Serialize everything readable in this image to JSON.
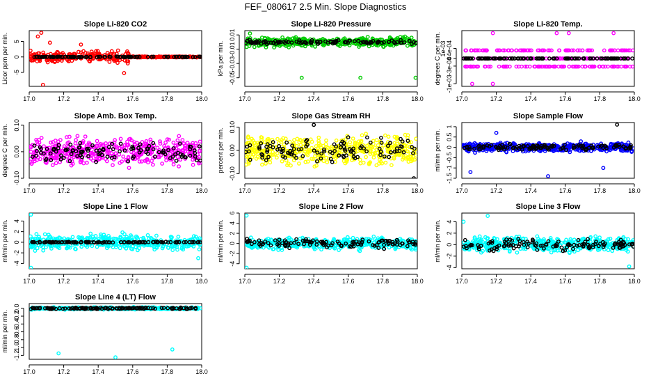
{
  "figure": {
    "title": "FEF_080617  2.5 Min. Slope Diagnostics"
  },
  "chart_data": [
    {
      "type": "scatter",
      "title": "Slope Li-820 CO2",
      "ylabel": "Licor ppm per min.",
      "xlim": [
        17.0,
        18.0
      ],
      "ylim": [
        -9.5,
        8.5
      ],
      "xticks": [
        17.0,
        17.2,
        17.4,
        17.6,
        17.8,
        18.0
      ],
      "yticks": [
        -5,
        0,
        5
      ],
      "series": [
        {
          "color": "#ff0000",
          "spread": 2.5,
          "spread_after": 0.25,
          "spread_from": 17.58,
          "count": 420,
          "outliers": [
            [
              17.07,
              7.8
            ],
            [
              17.05,
              6.6
            ],
            [
              17.08,
              -9.0
            ],
            [
              17.55,
              -5.2
            ],
            [
              17.12,
              4.6
            ],
            [
              17.3,
              4.0
            ]
          ]
        },
        {
          "color": "#000000",
          "spread": 0.15,
          "count": 120
        }
      ]
    },
    {
      "type": "scatter",
      "title": "Slope Li-820 Pressure",
      "ylabel": "kPa per min.",
      "xlim": [
        17.0,
        18.0
      ],
      "ylim": [
        -0.062,
        0.016
      ],
      "xticks": [
        17.0,
        17.2,
        17.4,
        17.6,
        17.8,
        18.0
      ],
      "yticks": [
        -0.05,
        -0.03,
        -0.01,
        0.01
      ],
      "series": [
        {
          "color": "#00cc00",
          "spread": 0.009,
          "count": 420,
          "outliers": [
            [
              17.33,
              -0.05
            ],
            [
              17.67,
              -0.05
            ],
            [
              17.99,
              -0.05
            ],
            [
              17.03,
              0.012
            ]
          ]
        },
        {
          "color": "#000000",
          "spread": 0.004,
          "count": 110
        }
      ]
    },
    {
      "type": "scatter",
      "title": "Slope Li-820 Temp.",
      "ylabel": "degrees C per min.",
      "xlim": [
        17.0,
        18.0
      ],
      "ylim": [
        -0.0011,
        0.0011
      ],
      "xticks": [
        17.0,
        17.2,
        17.4,
        17.6,
        17.8,
        18.0
      ],
      "yticks": [
        -0.001,
        -0.0003,
        0,
        0.0004
      ],
      "ytick_labels": [
        "-1e-03",
        "-3e-04",
        "0",
        "4e-04"
      ],
      "yaxis_note": "1e-03",
      "series": [
        {
          "color": "#ff00ff",
          "levels": [
            0,
            0.00032,
            -0.00032
          ],
          "count": 260,
          "outliers": [
            [
              17.18,
              0.001
            ],
            [
              17.55,
              0.001
            ],
            [
              17.62,
              0.001
            ],
            [
              17.88,
              0.001
            ],
            [
              17.06,
              -0.001
            ],
            [
              17.18,
              -0.001
            ]
          ]
        },
        {
          "color": "#000000",
          "levels": [
            0
          ],
          "count": 120
        }
      ]
    },
    {
      "type": "scatter",
      "title": "Slope Amb. Box Temp.",
      "ylabel": "degrees C per min.",
      "xlim": [
        17.0,
        18.0
      ],
      "ylim": [
        -0.1,
        0.11
      ],
      "xticks": [
        17.0,
        17.2,
        17.4,
        17.6,
        17.8,
        18.0
      ],
      "yticks": [
        -0.1,
        0.0,
        0.1
      ],
      "ytick_labels": [
        "-0.10",
        "0.00",
        "0.10"
      ],
      "series": [
        {
          "color": "#ff00ff",
          "spread": 0.07,
          "count": 450
        },
        {
          "color": "#000000",
          "spread": 0.05,
          "count": 110
        }
      ]
    },
    {
      "type": "scatter",
      "title": "Slope Gas Stream RH",
      "ylabel": "percent per min.",
      "xlim": [
        17.0,
        18.0
      ],
      "ylim": [
        -0.12,
        0.12
      ],
      "xticks": [
        17.0,
        17.2,
        17.4,
        17.6,
        17.8,
        18.0
      ],
      "yticks": [
        -0.1,
        0.0,
        0.1
      ],
      "ytick_labels": [
        "-0.10",
        "0.00",
        "0.10"
      ],
      "series": [
        {
          "color": "#ffff00",
          "spread": 0.085,
          "count": 450
        },
        {
          "color": "#000000",
          "spread": 0.07,
          "count": 110,
          "outliers": [
            [
              17.4,
              0.11
            ],
            [
              17.98,
              -0.12
            ]
          ]
        }
      ]
    },
    {
      "type": "scatter",
      "title": "Slope Sample Flow",
      "ylabel": "ml/min per min.",
      "xlim": [
        17.0,
        18.0
      ],
      "ylim": [
        -1.5,
        1.2
      ],
      "xticks": [
        17.0,
        17.2,
        17.4,
        17.6,
        17.8,
        18.0
      ],
      "yticks": [
        -1.5,
        -1.0,
        -0.5,
        0.0,
        0.5,
        1.0
      ],
      "ytick_labels": [
        "-1.5",
        "-1",
        "-0.5",
        "0",
        "0.5",
        "1"
      ],
      "series": [
        {
          "color": "#0000ff",
          "spread": 0.3,
          "count": 450,
          "outliers": [
            [
              17.05,
              -1.2
            ],
            [
              17.5,
              -1.4
            ],
            [
              17.82,
              -1.0
            ],
            [
              17.2,
              0.7
            ]
          ]
        },
        {
          "color": "#000000",
          "spread": 0.2,
          "count": 120,
          "outliers": [
            [
              17.9,
              1.1
            ]
          ]
        }
      ]
    },
    {
      "type": "scatter",
      "title": "Slope Line 1 Flow",
      "ylabel": "ml/min per min.",
      "xlim": [
        17.0,
        18.0
      ],
      "ylim": [
        -5,
        5.5
      ],
      "xticks": [
        17.0,
        17.2,
        17.4,
        17.6,
        17.8,
        18.0
      ],
      "yticks": [
        -4,
        -2,
        0,
        2,
        4
      ],
      "series": [
        {
          "color": "#00ffff",
          "spread": 2.0,
          "count": 420,
          "outliers": [
            [
              17.01,
              5.2
            ],
            [
              17.01,
              -4.8
            ],
            [
              17.98,
              -3.0
            ]
          ]
        },
        {
          "color": "#000000",
          "spread": 0.12,
          "count": 120
        }
      ]
    },
    {
      "type": "scatter",
      "title": "Slope Line 2 Flow",
      "ylabel": "ml/min per min.",
      "xlim": [
        17.0,
        18.0
      ],
      "ylim": [
        -5,
        6
      ],
      "xticks": [
        17.0,
        17.2,
        17.4,
        17.6,
        17.8,
        18.0
      ],
      "yticks": [
        -4,
        -2,
        0,
        2,
        4,
        6
      ],
      "series": [
        {
          "color": "#00ffff",
          "spread": 1.6,
          "count": 420,
          "outliers": [
            [
              17.01,
              5.5
            ],
            [
              17.01,
              -4.8
            ]
          ]
        },
        {
          "color": "#000000",
          "spread": 1.2,
          "count": 120
        }
      ]
    },
    {
      "type": "scatter",
      "title": "Slope Line 3 Flow",
      "ylabel": "ml/min per min.",
      "xlim": [
        17.0,
        18.0
      ],
      "ylim": [
        -4.2,
        5.5
      ],
      "xticks": [
        17.0,
        17.2,
        17.4,
        17.6,
        17.8,
        18.0
      ],
      "yticks": [
        -4,
        -2,
        0,
        2,
        4
      ],
      "series": [
        {
          "color": "#00ffff",
          "spread": 1.8,
          "count": 420,
          "outliers": [
            [
              17.15,
              5.0
            ],
            [
              17.01,
              4.0
            ],
            [
              17.97,
              -3.8
            ]
          ]
        },
        {
          "color": "#000000",
          "spread": 1.3,
          "count": 120
        }
      ]
    },
    {
      "type": "scatter",
      "title": "Slope Line 4 (LT) Flow",
      "ylabel": "ml/min per min.",
      "xlim": [
        17.0,
        18.0
      ],
      "ylim": [
        -1.3,
        0.12
      ],
      "xticks": [
        17.0,
        17.2,
        17.4,
        17.6,
        17.8,
        18.0
      ],
      "yticks": [
        -1.2,
        -1.0,
        -0.8,
        -0.6,
        -0.4,
        -0.2,
        0.0
      ],
      "ytick_labels": [
        "-1.2",
        "-1.0",
        "-0.8",
        "-0.6",
        "-0.4",
        "-0.2",
        "0.0"
      ],
      "series": [
        {
          "color": "#00ffff",
          "spread": 0.04,
          "count": 420,
          "outliers": [
            [
              17.17,
              -1.15
            ],
            [
              17.5,
              -1.25
            ],
            [
              17.83,
              -1.05
            ]
          ]
        },
        {
          "color": "#000000",
          "spread": 0.03,
          "count": 120
        }
      ]
    }
  ]
}
